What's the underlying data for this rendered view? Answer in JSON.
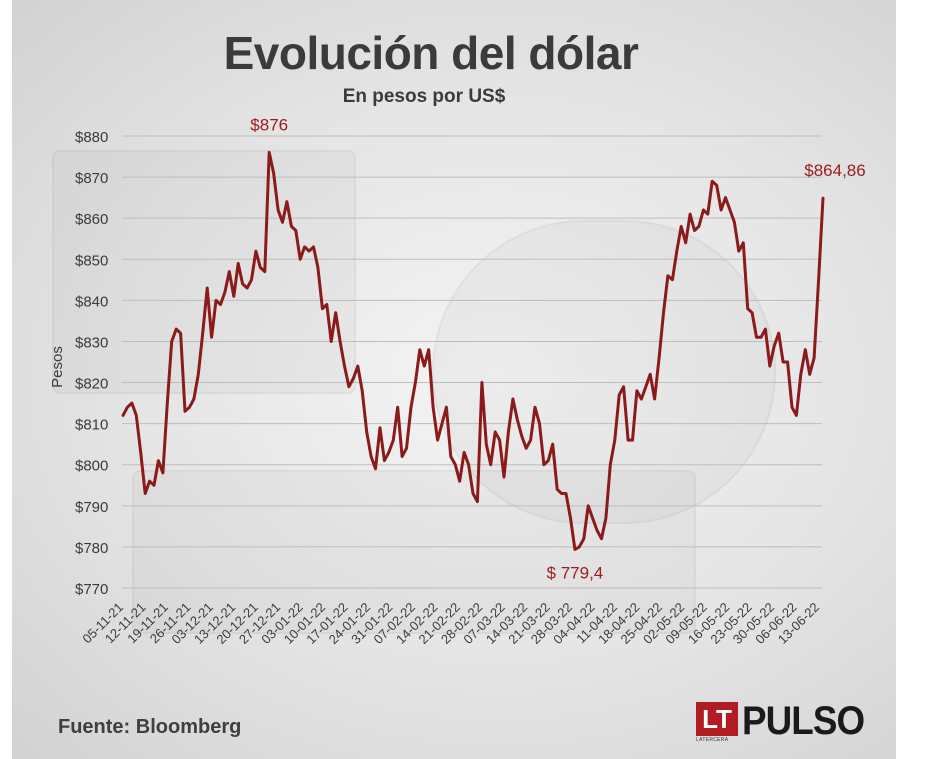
{
  "header": {
    "title": "Evolución del dólar",
    "subtitle": "En pesos por US$"
  },
  "footer": {
    "source": "Fuente: Bloomberg",
    "logo_mark": "LT",
    "logo_small": "LATERCERA",
    "logo_word": "PULSO"
  },
  "colors": {
    "line": "#8b1a1a",
    "annotation": "#9b1c1c",
    "grid": "#bdbdbd",
    "text": "#3b3b3b",
    "logo_red": "#b01c22"
  },
  "chart_data": {
    "type": "line",
    "title": "Evolución del dólar",
    "subtitle": "En pesos por US$",
    "ylabel": "Pesos",
    "xlabel": "",
    "ylim": [
      770,
      880
    ],
    "yticks": [
      880,
      870,
      860,
      850,
      840,
      830,
      820,
      810,
      800,
      790,
      780,
      770
    ],
    "ytick_labels": [
      "$880",
      "$870",
      "$860",
      "$850",
      "$840",
      "$830",
      "$820",
      "$810",
      "$800",
      "$790",
      "$780",
      "$770"
    ],
    "grid": true,
    "xtick_labels": [
      "05-11-21",
      "12-11-21",
      "19-11-21",
      "26-11-21",
      "03-12-21",
      "13-12-21",
      "20-12-21",
      "27-12-21",
      "03-01-22",
      "10-01-22",
      "17-01-22",
      "24-01-22",
      "31-01-22",
      "07-02-22",
      "14-02-22",
      "21-02-22",
      "28-02-22",
      "07-03-22",
      "14-03-22",
      "21-03-22",
      "28-03-22",
      "04-04-22",
      "11-04-22",
      "18-04-22",
      "25-04-22",
      "02-05-22",
      "09-05-22",
      "16-05-22",
      "23-05-22",
      "30-05-22",
      "06-06-22",
      "13-06-22"
    ],
    "values": [
      812,
      814,
      815,
      812,
      803,
      793,
      796,
      795,
      801,
      798,
      815,
      830,
      833,
      832,
      813,
      814,
      816,
      822,
      832,
      843,
      831,
      840,
      839,
      842,
      847,
      841,
      849,
      844,
      843,
      845,
      852,
      848,
      847,
      876,
      871,
      862,
      859,
      864,
      858,
      857,
      850,
      853,
      852,
      853,
      848,
      838,
      839,
      830,
      837,
      830,
      824,
      819,
      821,
      824,
      818,
      808,
      802,
      799,
      809,
      801,
      803,
      806,
      814,
      802,
      804,
      814,
      820,
      828,
      824,
      828,
      814,
      806,
      810,
      814,
      802,
      800,
      796,
      803,
      800,
      793,
      791,
      820,
      805,
      800,
      808,
      806,
      797,
      808,
      816,
      811,
      807,
      804,
      806,
      814,
      810,
      800,
      801,
      805,
      794,
      793,
      793,
      787,
      779.4,
      780,
      782,
      790,
      787,
      784,
      782,
      787,
      800,
      806,
      817,
      819,
      806,
      806,
      818,
      816,
      819,
      822,
      816,
      826,
      837,
      846,
      845,
      852,
      858,
      854,
      861,
      857,
      858,
      862,
      861,
      869,
      868,
      862,
      865,
      862,
      859,
      852,
      854,
      838,
      837,
      831,
      831,
      833,
      824,
      829,
      832,
      825,
      825,
      814,
      812,
      822,
      828,
      822,
      826,
      845,
      864.86
    ],
    "annotations": [
      {
        "label": "$876",
        "value": 876
      },
      {
        "label": "$ 779,4",
        "value": 779.4
      },
      {
        "label": "$864,86",
        "value": 864.86
      }
    ]
  }
}
